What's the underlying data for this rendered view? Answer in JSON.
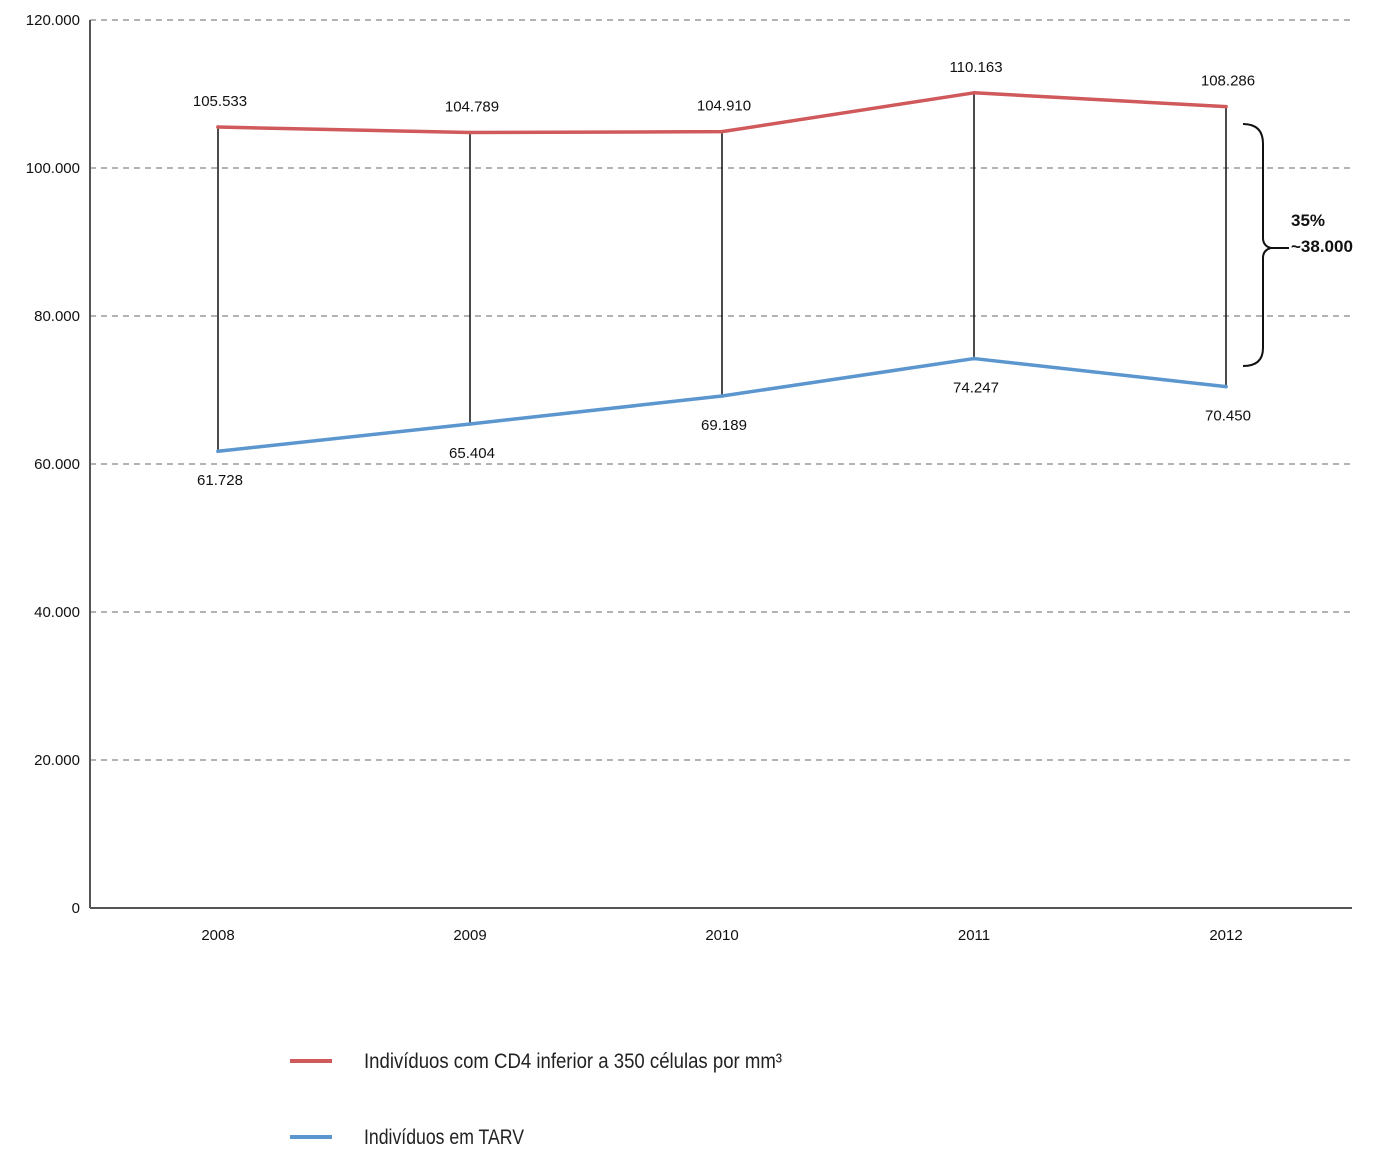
{
  "chart_data": {
    "type": "line",
    "title": "",
    "xlabel": "",
    "ylabel": "",
    "categories": [
      "2008",
      "2009",
      "2010",
      "2011",
      "2012"
    ],
    "ylim": [
      0,
      120000
    ],
    "yticks": [
      0,
      20000,
      40000,
      60000,
      80000,
      100000,
      120000
    ],
    "ytick_labels": [
      "0",
      "20.000",
      "40.000",
      "60.000",
      "80.000",
      "100.000",
      "120.000"
    ],
    "grid": true,
    "legend_position": "bottom",
    "series": [
      {
        "name": "Indivíduos com CD4 inferior a 350 células por mm³",
        "color": "#d0595b",
        "values": [
          105533,
          104789,
          104910,
          110163,
          108286
        ],
        "labels": [
          "105.533",
          "104.789",
          "104.910",
          "110.163",
          "108.286"
        ]
      },
      {
        "name": "Indivíduos em TARV",
        "color": "#5b96cf",
        "values": [
          61728,
          65404,
          69189,
          74247,
          70450
        ],
        "labels": [
          "61.728",
          "65.404",
          "69.189",
          "74.247",
          "70.450"
        ]
      }
    ],
    "annotation": {
      "line1": "35%",
      "line2": "~38.000"
    }
  }
}
